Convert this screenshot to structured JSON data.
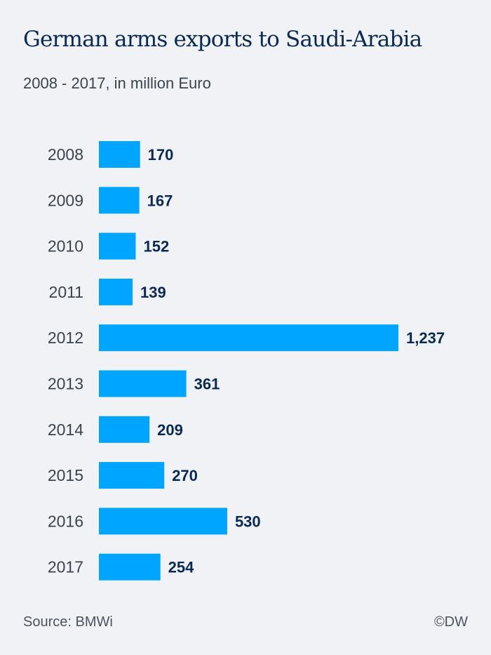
{
  "chart_data": {
    "type": "bar",
    "orientation": "horizontal",
    "title": "German arms exports to Saudi-Arabia",
    "subtitle": "2008 - 2017, in million Euro",
    "categories": [
      "2008",
      "2009",
      "2010",
      "2011",
      "2012",
      "2013",
      "2014",
      "2015",
      "2016",
      "2017"
    ],
    "values": [
      170,
      167,
      152,
      139,
      1237,
      361,
      209,
      270,
      530,
      254
    ],
    "value_labels": [
      "170",
      "167",
      "152",
      "139",
      "1,237",
      "361",
      "209",
      "270",
      "530",
      "254"
    ],
    "xlabel": "",
    "ylabel": "",
    "grid": false,
    "bar_color": "#00a5ff"
  },
  "footer": {
    "source": "Source: BMWi",
    "credit": "©DW"
  }
}
